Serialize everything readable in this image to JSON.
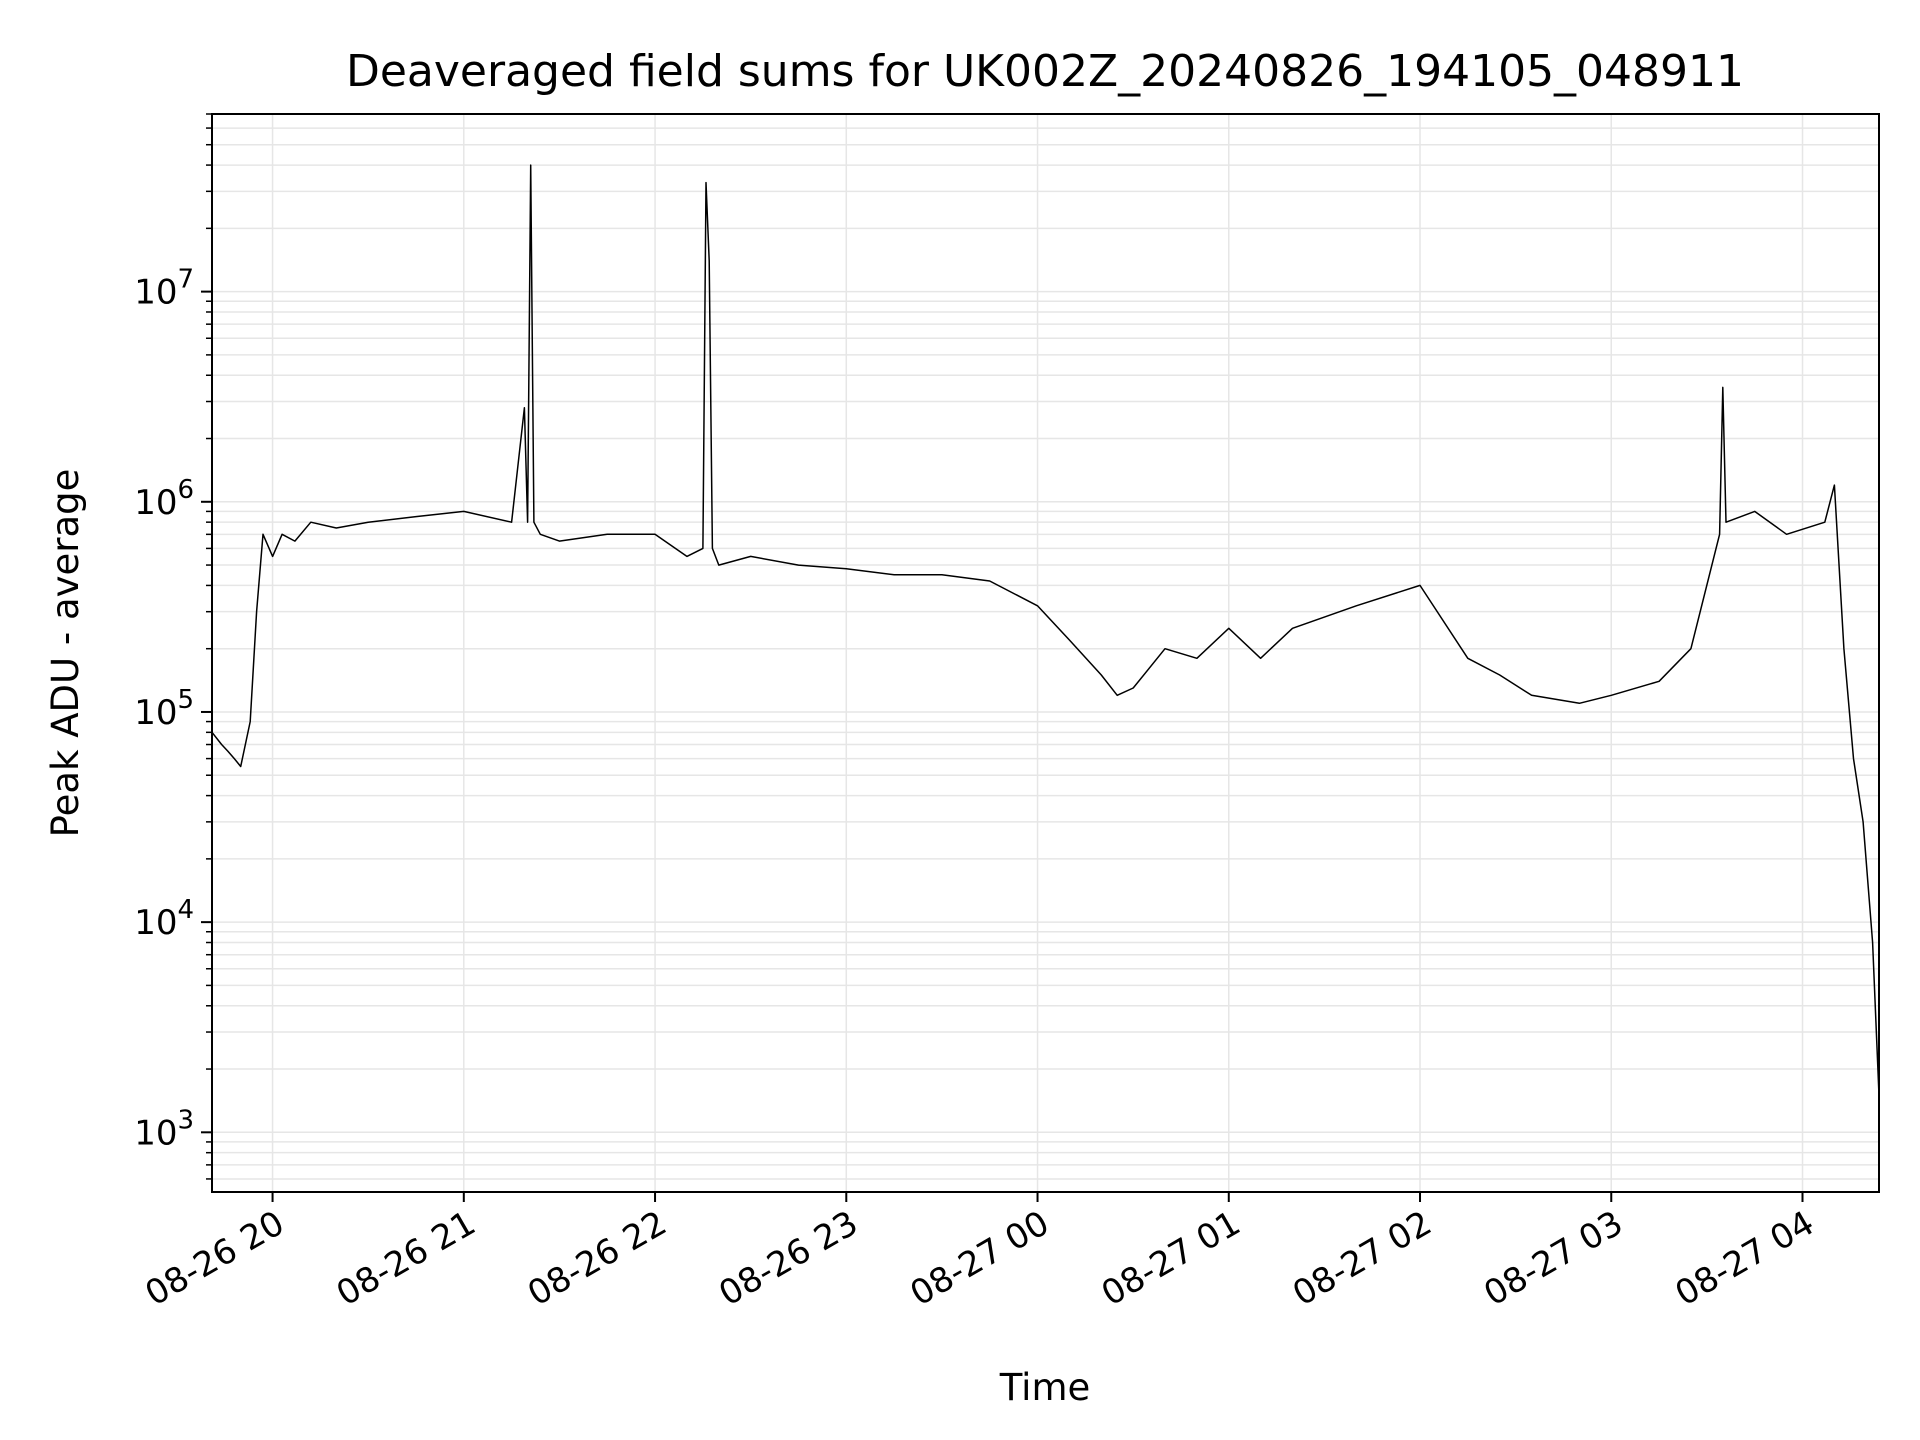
{
  "chart_data": {
    "type": "line",
    "title": "Deaveraged field sums for UK002Z_20240826_194105_048911",
    "xlabel": "Time",
    "ylabel": "Peak ADU - average",
    "yscale": "log",
    "grid": true,
    "line_color": "#000000",
    "grid_color": "#e6e6e6",
    "xlim": [
      "2024-08-26 19:41",
      "2024-08-27 04:24"
    ],
    "ylim": [
      520,
      70000000
    ],
    "x_ticks": [
      {
        "t": "2024-08-26 20:00",
        "label": "08-26 20"
      },
      {
        "t": "2024-08-26 21:00",
        "label": "08-26 21"
      },
      {
        "t": "2024-08-26 22:00",
        "label": "08-26 22"
      },
      {
        "t": "2024-08-26 23:00",
        "label": "08-26 23"
      },
      {
        "t": "2024-08-27 00:00",
        "label": "08-27 00"
      },
      {
        "t": "2024-08-27 01:00",
        "label": "08-27 01"
      },
      {
        "t": "2024-08-27 02:00",
        "label": "08-27 02"
      },
      {
        "t": "2024-08-27 03:00",
        "label": "08-27 03"
      },
      {
        "t": "2024-08-27 04:00",
        "label": "08-27 04"
      }
    ],
    "y_ticks": [
      {
        "value": 1000,
        "base": "10",
        "exp": "3"
      },
      {
        "value": 10000,
        "base": "10",
        "exp": "4"
      },
      {
        "value": 100000,
        "base": "10",
        "exp": "5"
      },
      {
        "value": 1000000,
        "base": "10",
        "exp": "6"
      },
      {
        "value": 10000000,
        "base": "10",
        "exp": "7"
      }
    ],
    "series": [
      {
        "x": [
          "2024-08-26 19:41",
          "2024-08-26 19:44",
          "2024-08-26 19:46",
          "2024-08-26 19:48",
          "2024-08-26 19:50",
          "2024-08-26 19:53",
          "2024-08-26 19:55",
          "2024-08-26 19:57",
          "2024-08-26 20:00",
          "2024-08-26 20:03",
          "2024-08-26 20:07",
          "2024-08-26 20:12",
          "2024-08-26 20:20",
          "2024-08-26 20:30",
          "2024-08-26 20:45",
          "2024-08-26 21:00",
          "2024-08-26 21:15",
          "2024-08-26 21:19",
          "2024-08-26 21:20",
          "2024-08-26 21:21",
          "2024-08-26 21:22",
          "2024-08-26 21:24",
          "2024-08-26 21:30",
          "2024-08-26 21:45",
          "2024-08-26 22:00",
          "2024-08-26 22:10",
          "2024-08-26 22:15",
          "2024-08-26 22:16",
          "2024-08-26 22:17",
          "2024-08-26 22:18",
          "2024-08-26 22:20",
          "2024-08-26 22:30",
          "2024-08-26 22:45",
          "2024-08-26 23:00",
          "2024-08-26 23:15",
          "2024-08-26 23:30",
          "2024-08-26 23:45",
          "2024-08-27 00:00",
          "2024-08-27 00:10",
          "2024-08-27 00:20",
          "2024-08-27 00:25",
          "2024-08-27 00:30",
          "2024-08-27 00:40",
          "2024-08-27 00:50",
          "2024-08-27 01:00",
          "2024-08-27 01:10",
          "2024-08-27 01:20",
          "2024-08-27 01:40",
          "2024-08-27 02:00",
          "2024-08-27 02:15",
          "2024-08-27 02:25",
          "2024-08-27 02:35",
          "2024-08-27 02:50",
          "2024-08-27 03:00",
          "2024-08-27 03:15",
          "2024-08-27 03:25",
          "2024-08-27 03:34",
          "2024-08-27 03:35",
          "2024-08-27 03:36",
          "2024-08-27 03:45",
          "2024-08-27 03:55",
          "2024-08-27 04:07",
          "2024-08-27 04:10",
          "2024-08-27 04:13",
          "2024-08-27 04:16",
          "2024-08-27 04:19",
          "2024-08-27 04:22",
          "2024-08-27 04:24"
        ],
        "y": [
          80000,
          70000,
          65000,
          60000,
          55000,
          90000,
          300000,
          700000,
          550000,
          700000,
          650000,
          800000,
          750000,
          800000,
          850000,
          900000,
          800000,
          2800000,
          800000,
          40000000,
          800000,
          700000,
          650000,
          700000,
          700000,
          550000,
          600000,
          33000000,
          14000000,
          600000,
          500000,
          550000,
          500000,
          480000,
          450000,
          450000,
          420000,
          320000,
          220000,
          150000,
          120000,
          130000,
          200000,
          180000,
          250000,
          180000,
          250000,
          320000,
          400000,
          180000,
          150000,
          120000,
          110000,
          120000,
          140000,
          200000,
          700000,
          3500000,
          800000,
          900000,
          700000,
          800000,
          1200000,
          200000,
          60000,
          30000,
          8000,
          1500
        ]
      }
    ]
  }
}
